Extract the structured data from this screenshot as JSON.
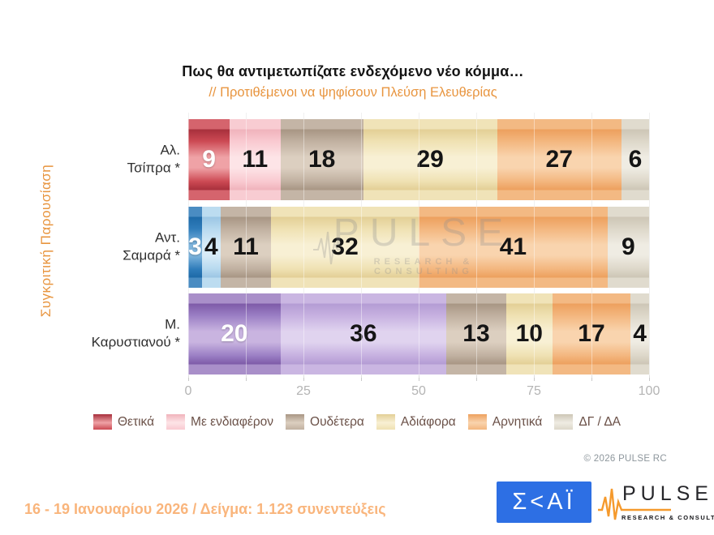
{
  "title": "Πως θα αντιμετωπίζατε ενδεχόμενο νέο κόμμα…",
  "subtitle": "// Προτιθέμενοι να ψηφίσουν Πλεύση Ελευθερίας",
  "side_label": "Συγκριτική  Παρουσίαση",
  "chart_data": {
    "type": "bar",
    "variant": "horizontal-stacked-100",
    "title": "Πως θα αντιμετωπίζατε ενδεχόμενο νέο κόμμα…",
    "subtitle": "// Προτιθέμενοι να ψηφίσουν Πλεύση Ελευθερίας",
    "categories": [
      "Αλ. Τσίπρα *",
      "Αντ. Σαμαρά *",
      "Μ. Καρυστιανού *"
    ],
    "series": [
      {
        "name": "Θετικά",
        "values": [
          9,
          3,
          20
        ]
      },
      {
        "name": "Με ενδιαφέρον",
        "values": [
          11,
          4,
          36
        ]
      },
      {
        "name": "Ουδέτερα",
        "values": [
          18,
          11,
          13
        ]
      },
      {
        "name": "Αδιάφορα",
        "values": [
          29,
          32,
          10
        ]
      },
      {
        "name": "Αρνητικά",
        "values": [
          27,
          41,
          17
        ]
      },
      {
        "name": "ΔΓ / ΔΑ",
        "values": [
          6,
          9,
          4
        ]
      }
    ],
    "xlim": [
      0,
      100
    ],
    "x_ticks": [
      0,
      25,
      50,
      75,
      100
    ],
    "minor_tick_step": 12.5,
    "grid": true,
    "legend_position": "bottom",
    "rows": [
      {
        "label_lines": [
          "Αλ.",
          "Τσίπρα *"
        ],
        "segments": [
          {
            "value": 9,
            "color": "red",
            "text": "white"
          },
          {
            "value": 11,
            "color": "pink",
            "text": "dark"
          },
          {
            "value": 18,
            "color": "taupe",
            "text": "dark"
          },
          {
            "value": 29,
            "color": "yellow",
            "text": "dark"
          },
          {
            "value": 27,
            "color": "orange",
            "text": "dark"
          },
          {
            "value": 6,
            "color": "gray",
            "text": "dark"
          }
        ]
      },
      {
        "label_lines": [
          "Αντ.",
          "Σαμαρά *"
        ],
        "segments": [
          {
            "value": 3,
            "color": "blue",
            "text": "white"
          },
          {
            "value": 4,
            "color": "lightblue",
            "text": "dark"
          },
          {
            "value": 11,
            "color": "taupe",
            "text": "dark"
          },
          {
            "value": 32,
            "color": "yellow",
            "text": "dark"
          },
          {
            "value": 41,
            "color": "orange",
            "text": "dark"
          },
          {
            "value": 9,
            "color": "gray",
            "text": "dark"
          }
        ]
      },
      {
        "label_lines": [
          "Μ.",
          "Καρυστιανού *"
        ],
        "segments": [
          {
            "value": 20,
            "color": "purple",
            "text": "white"
          },
          {
            "value": 36,
            "color": "lightpurple",
            "text": "dark"
          },
          {
            "value": 13,
            "color": "taupe",
            "text": "dark"
          },
          {
            "value": 10,
            "color": "yellow",
            "text": "dark"
          },
          {
            "value": 17,
            "color": "orange",
            "text": "dark"
          },
          {
            "value": 4,
            "color": "gray",
            "text": "dark"
          }
        ]
      }
    ],
    "legend": [
      {
        "label": "Θετικά",
        "color": "red"
      },
      {
        "label": "Με ενδιαφέρον",
        "color": "pink"
      },
      {
        "label": "Ουδέτερα",
        "color": "taupe"
      },
      {
        "label": "Αδιάφορα",
        "color": "yellow"
      },
      {
        "label": "Αρνητικά",
        "color": "orange"
      },
      {
        "label": "ΔΓ / ΔΑ",
        "color": "gray"
      }
    ],
    "palette": {
      "red": {
        "dark": "#a8303c",
        "base": "#cc4953",
        "lite": "#efa2a6",
        "cap": "#d5646d"
      },
      "pink": {
        "dark": "#f0b3bc",
        "base": "#f9c9d0",
        "lite": "#fde4e7",
        "cap": "#f8ccd2"
      },
      "taupe": {
        "dark": "#a89684",
        "base": "#c0b0a0",
        "lite": "#dccfc0",
        "cap": "#c4b5a6"
      },
      "yellow": {
        "dark": "#e3cf96",
        "base": "#efe1b2",
        "lite": "#f8f0d4",
        "cap": "#f0e3b8"
      },
      "orange": {
        "dark": "#eda05e",
        "base": "#f3b67e",
        "lite": "#f9d4ae",
        "cap": "#f3b983"
      },
      "gray": {
        "dark": "#cdc6b6",
        "base": "#ddd7c9",
        "lite": "#efece3",
        "cap": "#e0dbce"
      },
      "blue": {
        "dark": "#1e6aa8",
        "base": "#2f7cba",
        "lite": "#7fb5dd",
        "cap": "#4a8cc2"
      },
      "lightblue": {
        "dark": "#9cc6e4",
        "base": "#b7d9ef",
        "lite": "#d8ecf8",
        "cap": "#bcdcf0"
      },
      "purple": {
        "dark": "#7e5ba8",
        "base": "#9a7ec4",
        "lite": "#c9b4e0",
        "cap": "#a98fc9"
      },
      "lightpurple": {
        "dark": "#b49cd4",
        "base": "#c6b0e0",
        "lite": "#e0d3ef",
        "cap": "#cab6e2"
      }
    },
    "accent_color": "#e8953f"
  },
  "watermark": {
    "name": "PULSE",
    "tagline": "RESEARCH & CONSULTING"
  },
  "copyright": "© 2026 PULSE RC",
  "footer": {
    "survey_info": "16 - 19 Ιανουαρίου 2026  /  Δείγμα:  1.123 συνεντεύξεις",
    "skai_text": "Σ<ΑΪ",
    "pulse_name": "PULSE",
    "pulse_tagline": "RESEARCH & CONSULTING"
  }
}
